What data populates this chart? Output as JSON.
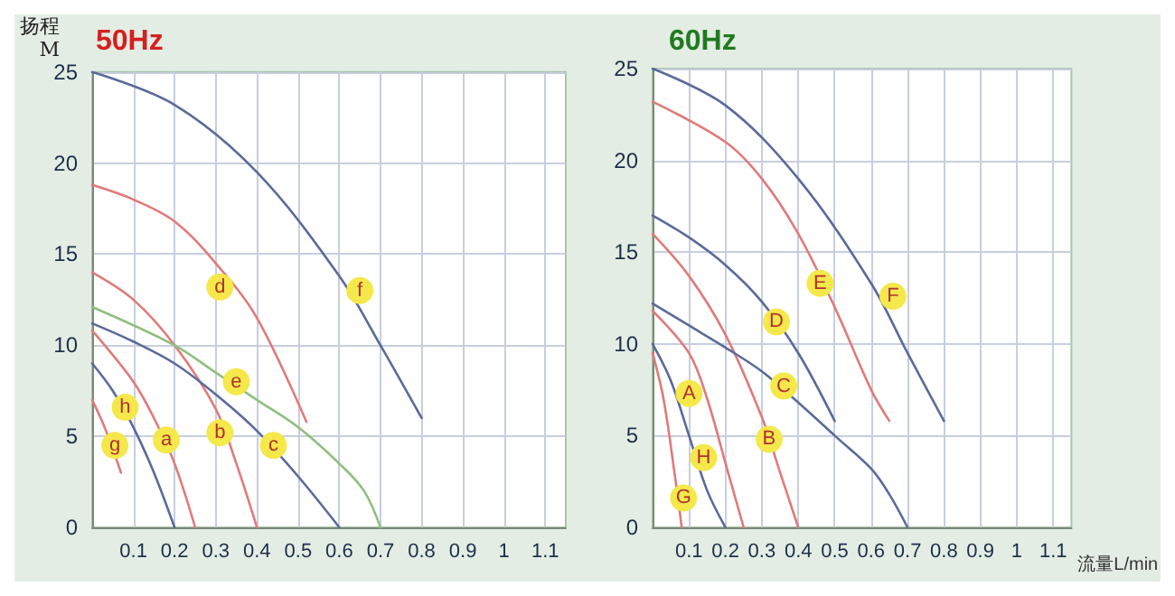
{
  "chart_data": [
    {
      "type": "line",
      "title": "50Hz",
      "ylabel": "扬程\nM",
      "xlim": [
        0,
        1.15
      ],
      "ylim": [
        0,
        25
      ],
      "xticks": [
        0.1,
        0.2,
        0.3,
        0.4,
        0.5,
        0.6,
        0.7,
        0.8,
        0.9,
        1.0,
        1.1
      ],
      "yticks": [
        0,
        5,
        10,
        15,
        20,
        25
      ],
      "grid": true,
      "marker": "none",
      "line_style": "solid",
      "series": [
        {
          "color": "#5a6a9a",
          "x": [
            0,
            0.2,
            0.4,
            0.6,
            0.7,
            0.8
          ],
          "values": [
            25,
            23.2,
            19.5,
            13.8,
            10,
            6
          ]
        },
        {
          "color": "#e07a7a",
          "x": [
            0,
            0.1,
            0.2,
            0.3,
            0.4,
            0.52
          ],
          "values": [
            18.8,
            18,
            16.8,
            14.5,
            11.5,
            5.8
          ]
        },
        {
          "color": "#e07a7a",
          "x": [
            0,
            0.1,
            0.2,
            0.3,
            0.35,
            0.4
          ],
          "values": [
            14,
            12.5,
            10,
            6.5,
            3.5,
            0
          ]
        },
        {
          "color": "#e07a7a",
          "x": [
            0,
            0.1,
            0.15,
            0.2,
            0.25
          ],
          "values": [
            10.8,
            8,
            6,
            3.5,
            0
          ]
        },
        {
          "color": "#5a6a9a",
          "x": [
            0,
            0.1,
            0.2,
            0.3,
            0.4,
            0.5,
            0.6
          ],
          "values": [
            11.2,
            10.2,
            9,
            7.3,
            5.3,
            2.8,
            0
          ]
        },
        {
          "color": "#8fbf7f",
          "x": [
            0,
            0.2,
            0.3,
            0.4,
            0.5,
            0.6,
            0.66,
            0.7
          ],
          "values": [
            12.1,
            10,
            8.5,
            7,
            5.5,
            3.5,
            2,
            0
          ]
        },
        {
          "color": "#5a6a9a",
          "x": [
            0,
            0.05,
            0.1,
            0.15,
            0.2
          ],
          "values": [
            9,
            7.5,
            5.5,
            3,
            0
          ]
        },
        {
          "color": "#e07a7a",
          "x": [
            0,
            0.03,
            0.07
          ],
          "values": [
            7,
            5.5,
            3
          ]
        }
      ],
      "annotations": [
        {
          "text": "d",
          "x": 0.31,
          "y": 13.2
        },
        {
          "text": "f",
          "x": 0.65,
          "y": 13
        },
        {
          "text": "e",
          "x": 0.35,
          "y": 8
        },
        {
          "text": "h",
          "x": 0.08,
          "y": 6.6
        },
        {
          "text": "g",
          "x": 0.055,
          "y": 4.5
        },
        {
          "text": "a",
          "x": 0.18,
          "y": 4.8
        },
        {
          "text": "b",
          "x": 0.31,
          "y": 5.2
        },
        {
          "text": "c",
          "x": 0.44,
          "y": 4.5
        }
      ]
    },
    {
      "type": "line",
      "title": "60Hz",
      "xlabel": "流量L/min",
      "xlim": [
        0,
        1.15
      ],
      "ylim": [
        0,
        25
      ],
      "xticks": [
        0.1,
        0.2,
        0.3,
        0.4,
        0.5,
        0.6,
        0.7,
        0.8,
        0.9,
        1.0,
        1.1
      ],
      "yticks": [
        0,
        5,
        10,
        15,
        20,
        25
      ],
      "grid": true,
      "marker": "none",
      "line_style": "solid",
      "series": [
        {
          "color": "#5a6a9a",
          "x": [
            0,
            0.2,
            0.4,
            0.6,
            0.7,
            0.8
          ],
          "values": [
            25,
            23,
            19,
            13.3,
            9.5,
            5.8
          ]
        },
        {
          "color": "#e07a7a",
          "x": [
            0,
            0.2,
            0.3,
            0.4,
            0.5,
            0.6,
            0.65
          ],
          "values": [
            23.2,
            21,
            19,
            16,
            12,
            7.5,
            5.8
          ]
        },
        {
          "color": "#5a6a9a",
          "x": [
            0,
            0.1,
            0.2,
            0.3,
            0.4,
            0.5
          ],
          "values": [
            17,
            15.8,
            14.3,
            12.3,
            9.5,
            5.8
          ]
        },
        {
          "color": "#e07a7a",
          "x": [
            0,
            0.1,
            0.2,
            0.3,
            0.35,
            0.4
          ],
          "values": [
            16,
            13.7,
            10.5,
            6,
            3,
            0
          ]
        },
        {
          "color": "#5a6a9a",
          "x": [
            0,
            0.1,
            0.2,
            0.3,
            0.4,
            0.5,
            0.6,
            0.65,
            0.7
          ],
          "values": [
            12.2,
            11,
            9.8,
            8.5,
            6.8,
            5,
            3.2,
            1.8,
            0
          ]
        },
        {
          "color": "#e07a7a",
          "x": [
            0,
            0.1,
            0.15,
            0.2,
            0.25
          ],
          "values": [
            11.8,
            9.5,
            7,
            3.5,
            0
          ]
        },
        {
          "color": "#5a6a9a",
          "x": [
            0,
            0.05,
            0.1,
            0.15,
            0.2
          ],
          "values": [
            10,
            8,
            5,
            2,
            0
          ]
        },
        {
          "color": "#e07a7a",
          "x": [
            0,
            0.03,
            0.06,
            0.08
          ],
          "values": [
            9.5,
            7,
            3,
            0
          ]
        }
      ],
      "annotations": [
        {
          "text": "E",
          "x": 0.46,
          "y": 13.3
        },
        {
          "text": "F",
          "x": 0.66,
          "y": 12.6
        },
        {
          "text": "D",
          "x": 0.34,
          "y": 11.2
        },
        {
          "text": "C",
          "x": 0.36,
          "y": 7.7
        },
        {
          "text": "A",
          "x": 0.1,
          "y": 7.3
        },
        {
          "text": "B",
          "x": 0.32,
          "y": 4.8
        },
        {
          "text": "H",
          "x": 0.14,
          "y": 3.8
        },
        {
          "text": "G",
          "x": 0.085,
          "y": 1.6
        }
      ]
    }
  ]
}
